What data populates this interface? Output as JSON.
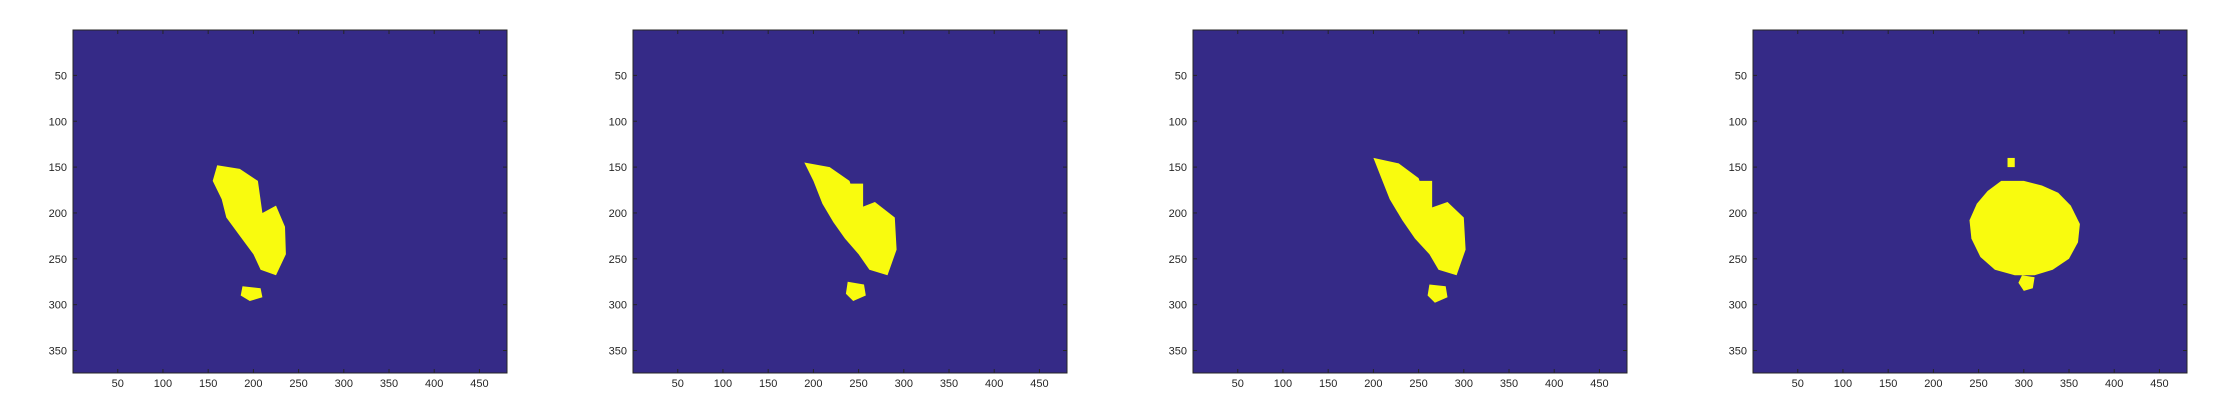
{
  "figure": {
    "background": "#ffffff"
  },
  "colors": {
    "background_class": "#352a87",
    "foreground_class": "#f9fb0e",
    "axis": "#262626"
  },
  "chart_data": [
    {
      "type": "heatmap",
      "title": "",
      "xlabel": "",
      "ylabel": "",
      "xlim": [
        0.5,
        480.5
      ],
      "ylim": [
        0.5,
        374.5
      ],
      "y_direction": "reverse",
      "colormap": "parula",
      "binary": true,
      "values": [
        0,
        1
      ],
      "xticks": [
        50,
        100,
        150,
        200,
        250,
        300,
        350,
        400,
        450
      ],
      "yticks": [
        50,
        100,
        150,
        200,
        250,
        300,
        350
      ],
      "xtick_labels": [
        "50",
        "100",
        "150",
        "200",
        "250",
        "300",
        "350",
        "400",
        "450"
      ],
      "ytick_labels": [
        "50",
        "100",
        "150",
        "200",
        "250",
        "300",
        "350"
      ],
      "foreground_regions": [
        {
          "shape": "polygon",
          "points": [
            [
              160,
              148
            ],
            [
              185,
              152
            ],
            [
              205,
              165
            ],
            [
              210,
              200
            ],
            [
              225,
              192
            ],
            [
              235,
              215
            ],
            [
              236,
              245
            ],
            [
              225,
              268
            ],
            [
              208,
              262
            ],
            [
              200,
              245
            ],
            [
              185,
              225
            ],
            [
              170,
              205
            ],
            [
              165,
              185
            ],
            [
              155,
              165
            ]
          ]
        },
        {
          "shape": "polygon",
          "points": [
            [
              188,
              280
            ],
            [
              208,
              282
            ],
            [
              210,
              292
            ],
            [
              196,
              296
            ],
            [
              186,
              290
            ]
          ]
        },
        {
          "shape": "rect",
          "x": [
            190,
            205
          ],
          "y": [
            170,
            225
          ]
        }
      ]
    },
    {
      "type": "heatmap",
      "title": "",
      "xlabel": "",
      "ylabel": "",
      "xlim": [
        0.5,
        480.5
      ],
      "ylim": [
        0.5,
        374.5
      ],
      "y_direction": "reverse",
      "colormap": "parula",
      "binary": true,
      "values": [
        0,
        1
      ],
      "xticks": [
        50,
        100,
        150,
        200,
        250,
        300,
        350,
        400,
        450
      ],
      "yticks": [
        50,
        100,
        150,
        200,
        250,
        300,
        350
      ],
      "xtick_labels": [
        "50",
        "100",
        "150",
        "200",
        "250",
        "300",
        "350",
        "400",
        "450"
      ],
      "ytick_labels": [
        "50",
        "100",
        "150",
        "200",
        "250",
        "300",
        "350"
      ],
      "foreground_regions": [
        {
          "shape": "polygon",
          "points": [
            [
              190,
              145
            ],
            [
              218,
              150
            ],
            [
              240,
              165
            ],
            [
              250,
              195
            ],
            [
              268,
              188
            ],
            [
              290,
              205
            ],
            [
              292,
              240
            ],
            [
              282,
              268
            ],
            [
              262,
              262
            ],
            [
              250,
              245
            ],
            [
              235,
              228
            ],
            [
              222,
              210
            ],
            [
              210,
              190
            ],
            [
              200,
              165
            ]
          ]
        },
        {
          "shape": "polygon",
          "points": [
            [
              238,
              275
            ],
            [
              256,
              278
            ],
            [
              258,
              290
            ],
            [
              244,
              296
            ],
            [
              236,
              288
            ]
          ]
        },
        {
          "shape": "rect",
          "x": [
            238,
            255
          ],
          "y": [
            168,
            222
          ]
        }
      ]
    },
    {
      "type": "heatmap",
      "title": "",
      "xlabel": "",
      "ylabel": "",
      "xlim": [
        0.5,
        480.5
      ],
      "ylim": [
        0.5,
        374.5
      ],
      "y_direction": "reverse",
      "colormap": "parula",
      "binary": true,
      "values": [
        0,
        1
      ],
      "xticks": [
        50,
        100,
        150,
        200,
        250,
        300,
        350,
        400,
        450
      ],
      "yticks": [
        50,
        100,
        150,
        200,
        250,
        300,
        350
      ],
      "xtick_labels": [
        "50",
        "100",
        "150",
        "200",
        "250",
        "300",
        "350",
        "400",
        "450"
      ],
      "ytick_labels": [
        "50",
        "100",
        "150",
        "200",
        "250",
        "300",
        "350"
      ],
      "foreground_regions": [
        {
          "shape": "polygon",
          "points": [
            [
              200,
              140
            ],
            [
              228,
              146
            ],
            [
              250,
              162
            ],
            [
              262,
              195
            ],
            [
              282,
              188
            ],
            [
              300,
              205
            ],
            [
              302,
              240
            ],
            [
              292,
              268
            ],
            [
              272,
              262
            ],
            [
              262,
              245
            ],
            [
              246,
              228
            ],
            [
              232,
              208
            ],
            [
              218,
              185
            ],
            [
              208,
              160
            ]
          ]
        },
        {
          "shape": "polygon",
          "points": [
            [
              262,
              278
            ],
            [
              280,
              280
            ],
            [
              282,
              292
            ],
            [
              268,
              298
            ],
            [
              260,
              290
            ]
          ]
        },
        {
          "shape": "rect",
          "x": [
            248,
            265
          ],
          "y": [
            165,
            220
          ]
        }
      ]
    },
    {
      "type": "heatmap",
      "title": "",
      "xlabel": "",
      "ylabel": "",
      "xlim": [
        0.5,
        480.5
      ],
      "ylim": [
        0.5,
        374.5
      ],
      "y_direction": "reverse",
      "colormap": "parula",
      "binary": true,
      "values": [
        0,
        1
      ],
      "xticks": [
        50,
        100,
        150,
        200,
        250,
        300,
        350,
        400,
        450
      ],
      "yticks": [
        50,
        100,
        150,
        200,
        250,
        300,
        350
      ],
      "xtick_labels": [
        "50",
        "100",
        "150",
        "200",
        "250",
        "300",
        "350",
        "400",
        "450"
      ],
      "ytick_labels": [
        "50",
        "100",
        "150",
        "200",
        "250",
        "300",
        "350"
      ],
      "foreground_regions": [
        {
          "shape": "polygon",
          "points": [
            [
              275,
              165
            ],
            [
              300,
              165
            ],
            [
              320,
              170
            ],
            [
              338,
              178
            ],
            [
              352,
              192
            ],
            [
              362,
              212
            ],
            [
              360,
              232
            ],
            [
              350,
              250
            ],
            [
              332,
              262
            ],
            [
              312,
              268
            ],
            [
              290,
              268
            ],
            [
              268,
              262
            ],
            [
              252,
              248
            ],
            [
              242,
              228
            ],
            [
              240,
              208
            ],
            [
              248,
              190
            ],
            [
              260,
              176
            ]
          ]
        },
        {
          "shape": "polygon",
          "points": [
            [
              298,
              268
            ],
            [
              312,
              270
            ],
            [
              310,
              282
            ],
            [
              300,
              285
            ],
            [
              294,
              276
            ]
          ]
        },
        {
          "shape": "rect",
          "x": [
            282,
            290
          ],
          "y": [
            140,
            150
          ]
        }
      ]
    }
  ]
}
